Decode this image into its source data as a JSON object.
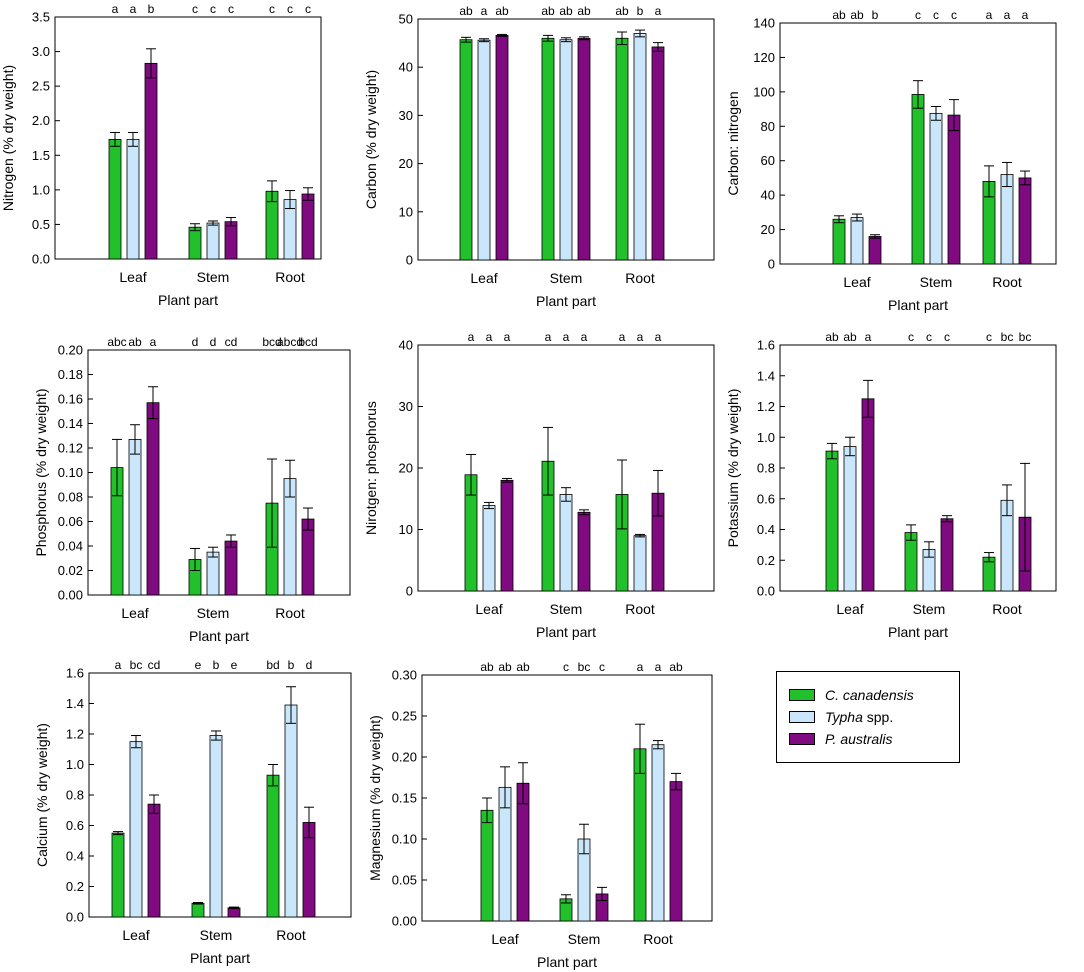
{
  "legend": {
    "items": [
      {
        "italic": "C. canadensis",
        "rest": "",
        "color": "#22c02a"
      },
      {
        "italic": "Typha",
        "rest": " spp.",
        "color": "#c9e6fb"
      },
      {
        "italic": "P. australis",
        "rest": "",
        "color": "#800a80"
      }
    ]
  },
  "chart_data": [
    {
      "type": "bar",
      "title": "",
      "xlabel": "Plant part",
      "ylabel": "Nitrogen (% dry weight)",
      "categories": [
        "Leaf",
        "Stem",
        "Root"
      ],
      "ylim": [
        0,
        3.5
      ],
      "ticks": [
        0.0,
        0.5,
        1.0,
        1.5,
        2.0,
        2.5,
        3.0,
        3.5
      ],
      "tick_decimals": 1,
      "series": [
        {
          "name": "C. canadensis",
          "values": [
            1.73,
            0.46,
            0.98
          ],
          "errors": [
            0.1,
            0.05,
            0.15
          ]
        },
        {
          "name": "Typha spp.",
          "values": [
            1.73,
            0.52,
            0.86
          ],
          "errors": [
            0.1,
            0.03,
            0.13
          ]
        },
        {
          "name": "P. australis",
          "values": [
            2.83,
            0.54,
            0.94
          ],
          "errors": [
            0.21,
            0.06,
            0.09
          ]
        }
      ],
      "significance": [
        [
          "a",
          "a",
          "b"
        ],
        [
          "c",
          "c",
          "c"
        ],
        [
          "c",
          "c",
          "c"
        ]
      ]
    },
    {
      "type": "bar",
      "title": "",
      "xlabel": "Plant part",
      "ylabel": "Carbon (% dry weight)",
      "categories": [
        "Leaf",
        "Stem",
        "Root"
      ],
      "ylim": [
        0,
        50
      ],
      "ticks": [
        0,
        10,
        20,
        30,
        40,
        50
      ],
      "tick_decimals": 0,
      "series": [
        {
          "name": "C. canadensis",
          "values": [
            45.7,
            46.0,
            46.0
          ],
          "errors": [
            0.5,
            0.6,
            1.3
          ]
        },
        {
          "name": "Typha spp.",
          "values": [
            45.6,
            45.7,
            47.0
          ],
          "errors": [
            0.3,
            0.4,
            0.7
          ]
        },
        {
          "name": "P. australis",
          "values": [
            46.6,
            46.0,
            44.2
          ],
          "errors": [
            0.2,
            0.3,
            0.9
          ]
        }
      ],
      "significance": [
        [
          "ab",
          "a",
          "ab"
        ],
        [
          "ab",
          "ab",
          "ab"
        ],
        [
          "ab",
          "b",
          "a"
        ]
      ]
    },
    {
      "type": "bar",
      "title": "",
      "xlabel": "Plant part",
      "ylabel": "Carbon: nitrogen",
      "categories": [
        "Leaf",
        "Stem",
        "Root"
      ],
      "ylim": [
        0,
        140
      ],
      "ticks": [
        0,
        20,
        40,
        60,
        80,
        100,
        120,
        140
      ],
      "tick_decimals": 0,
      "series": [
        {
          "name": "C. canadensis",
          "values": [
            26,
            98.5,
            48
          ],
          "errors": [
            2,
            8,
            9
          ]
        },
        {
          "name": "Typha spp.",
          "values": [
            27,
            87.5,
            52
          ],
          "errors": [
            2,
            4,
            7
          ]
        },
        {
          "name": "P. australis",
          "values": [
            16,
            86.5,
            50
          ],
          "errors": [
            1,
            9,
            4
          ]
        }
      ],
      "significance": [
        [
          "ab",
          "ab",
          "b"
        ],
        [
          "c",
          "c",
          "c"
        ],
        [
          "a",
          "a",
          "a"
        ]
      ]
    },
    {
      "type": "bar",
      "title": "",
      "xlabel": "Plant part",
      "ylabel": "Phosphorus (% dry weight)",
      "categories": [
        "Leaf",
        "Stem",
        "Root"
      ],
      "ylim": [
        0,
        0.2
      ],
      "ticks": [
        0.0,
        0.02,
        0.04,
        0.06,
        0.08,
        0.1,
        0.12,
        0.14,
        0.16,
        0.18,
        0.2
      ],
      "tick_decimals": 2,
      "series": [
        {
          "name": "C. canadensis",
          "values": [
            0.104,
            0.029,
            0.075
          ],
          "errors": [
            0.023,
            0.009,
            0.036
          ]
        },
        {
          "name": "Typha spp.",
          "values": [
            0.127,
            0.035,
            0.095
          ],
          "errors": [
            0.012,
            0.004,
            0.015
          ]
        },
        {
          "name": "P. australis",
          "values": [
            0.157,
            0.044,
            0.062
          ],
          "errors": [
            0.013,
            0.005,
            0.009
          ]
        }
      ],
      "significance": [
        [
          "abc",
          "ab",
          "a"
        ],
        [
          "d",
          "d",
          "cd"
        ],
        [
          "bcd",
          "abcd",
          "bcd"
        ]
      ]
    },
    {
      "type": "bar",
      "title": "",
      "xlabel": "Plant part",
      "ylabel": "Nirotgen: phosphorus",
      "categories": [
        "Leaf",
        "Stem",
        "Root"
      ],
      "ylim": [
        0,
        40
      ],
      "ticks": [
        0,
        10,
        20,
        30,
        40
      ],
      "tick_decimals": 0,
      "series": [
        {
          "name": "C. canadensis",
          "values": [
            18.9,
            21.1,
            15.7
          ],
          "errors": [
            3.3,
            5.5,
            5.6
          ]
        },
        {
          "name": "Typha spp.",
          "values": [
            13.9,
            15.7,
            9.0
          ],
          "errors": [
            0.5,
            1.1,
            0.2
          ]
        },
        {
          "name": "P. australis",
          "values": [
            18.0,
            12.8,
            15.9
          ],
          "errors": [
            0.3,
            0.4,
            3.7
          ]
        }
      ],
      "significance": [
        [
          "a",
          "a",
          "a"
        ],
        [
          "a",
          "a",
          "a"
        ],
        [
          "a",
          "a",
          "a"
        ]
      ]
    },
    {
      "type": "bar",
      "title": "",
      "xlabel": "Plant part",
      "ylabel": "Potassium (% dry weight)",
      "categories": [
        "Leaf",
        "Stem",
        "Root"
      ],
      "ylim": [
        0,
        1.6
      ],
      "ticks": [
        0.0,
        0.2,
        0.4,
        0.6,
        0.8,
        1.0,
        1.2,
        1.4,
        1.6
      ],
      "tick_decimals": 1,
      "series": [
        {
          "name": "C. canadensis",
          "values": [
            0.91,
            0.38,
            0.22
          ],
          "errors": [
            0.05,
            0.05,
            0.03
          ]
        },
        {
          "name": "Typha spp.",
          "values": [
            0.94,
            0.27,
            0.59
          ],
          "errors": [
            0.06,
            0.05,
            0.1
          ]
        },
        {
          "name": "P. australis",
          "values": [
            1.25,
            0.47,
            0.48
          ],
          "errors": [
            0.12,
            0.02,
            0.35
          ]
        }
      ],
      "significance": [
        [
          "ab",
          "ab",
          "a"
        ],
        [
          "c",
          "c",
          "c"
        ],
        [
          "c",
          "bc",
          "bc"
        ]
      ]
    },
    {
      "type": "bar",
      "title": "",
      "xlabel": "Plant part",
      "ylabel": "Calcium (% dry weight)",
      "categories": [
        "Leaf",
        "Stem",
        "Root"
      ],
      "ylim": [
        0,
        1.6
      ],
      "ticks": [
        0.0,
        0.2,
        0.4,
        0.6,
        0.8,
        1.0,
        1.2,
        1.4,
        1.6
      ],
      "tick_decimals": 1,
      "series": [
        {
          "name": "C. canadensis",
          "values": [
            0.55,
            0.09,
            0.93
          ],
          "errors": [
            0.01,
            0.005,
            0.07
          ]
        },
        {
          "name": "Typha spp.",
          "values": [
            1.15,
            1.19,
            1.39
          ],
          "errors": [
            0.04,
            0.03,
            0.12
          ]
        },
        {
          "name": "P. australis",
          "values": [
            0.74,
            0.06,
            0.62
          ],
          "errors": [
            0.06,
            0.005,
            0.1
          ]
        }
      ],
      "significance": [
        [
          "a",
          "bc",
          "cd"
        ],
        [
          "e",
          "b",
          "e"
        ],
        [
          "bd",
          "b",
          "d"
        ]
      ]
    },
    {
      "type": "bar",
      "title": "",
      "xlabel": "Plant part",
      "ylabel": "Magnesium (% dry weight)",
      "categories": [
        "Leaf",
        "Stem",
        "Root"
      ],
      "ylim": [
        0,
        0.3
      ],
      "ticks": [
        0.0,
        0.05,
        0.1,
        0.15,
        0.2,
        0.25,
        0.3
      ],
      "tick_decimals": 2,
      "series": [
        {
          "name": "C. canadensis",
          "values": [
            0.135,
            0.027,
            0.21
          ],
          "errors": [
            0.015,
            0.005,
            0.03
          ]
        },
        {
          "name": "Typha spp.",
          "values": [
            0.163,
            0.1,
            0.215
          ],
          "errors": [
            0.025,
            0.018,
            0.005
          ]
        },
        {
          "name": "P. australis",
          "values": [
            0.168,
            0.033,
            0.17
          ],
          "errors": [
            0.025,
            0.008,
            0.01
          ]
        }
      ],
      "significance": [
        [
          "ab",
          "ab",
          "ab"
        ],
        [
          "c",
          "bc",
          "c"
        ],
        [
          "a",
          "a",
          "ab"
        ]
      ]
    }
  ]
}
